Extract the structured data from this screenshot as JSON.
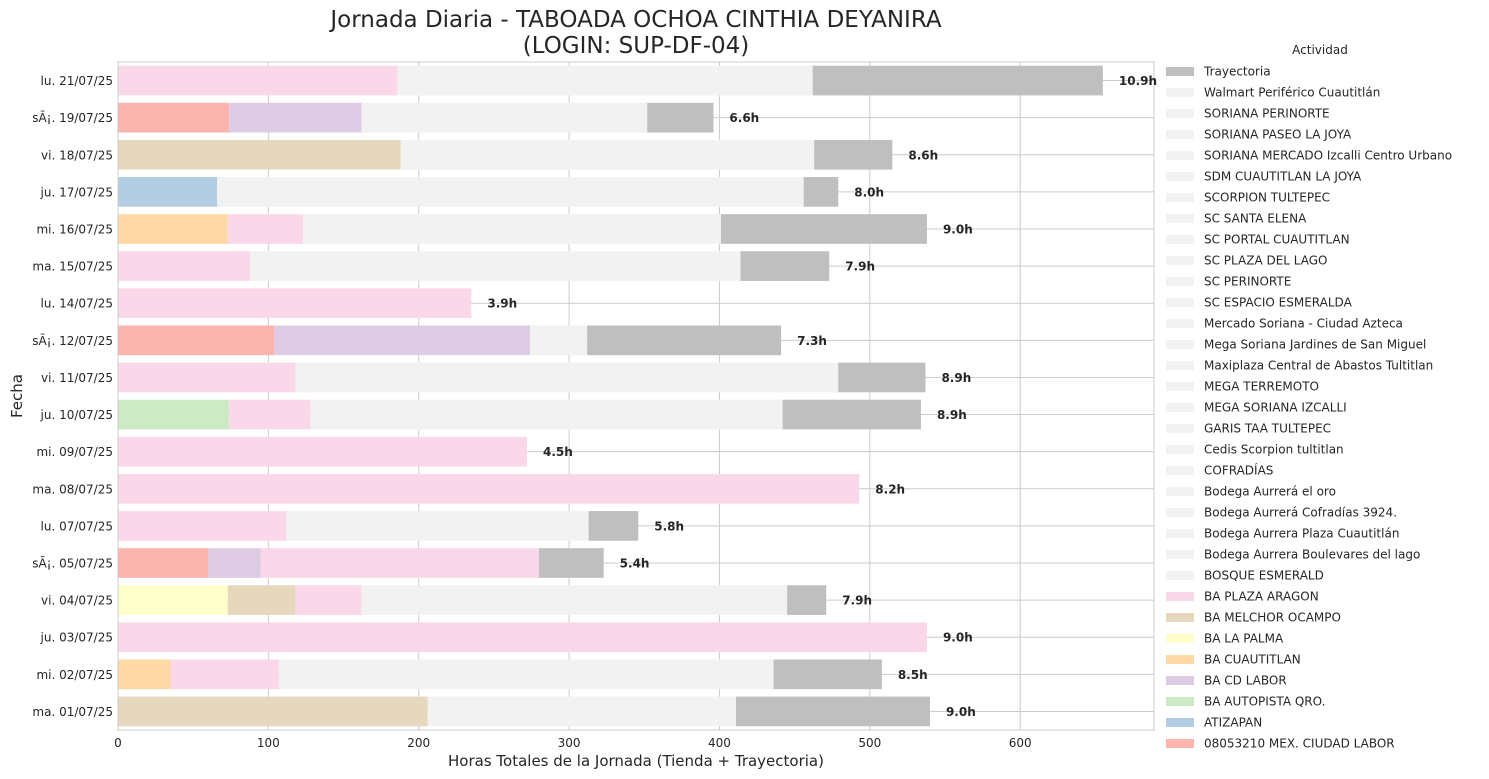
{
  "chart_data": {
    "type": "bar",
    "orientation": "horizontal",
    "stacked": true,
    "title_lines": [
      "Jornada Diaria - TABOADA OCHOA CINTHIA DEYANIRA",
      "(LOGIN: SUP-DF-04)"
    ],
    "xlabel": "Horas Totales de la Jornada (Tienda + Trayectoria)",
    "ylabel": "Fecha",
    "xlim": [
      0,
      689
    ],
    "xticks": [
      0,
      100,
      200,
      300,
      400,
      500,
      600
    ],
    "grid": true,
    "legend": {
      "title": "Actividad",
      "placement": "right"
    },
    "colors": {
      "Trayectoria": "#bfbfbf",
      "store": "#f2f2f2",
      "BA PLAZA ARAGON": "#fbd8e9",
      "BA MELCHOR OCAMPO": "#e5d8bd",
      "BA LA PALMA": "#ffffcc",
      "BA CUAUTITLAN": "#fed9a6",
      "BA CD LABOR": "#decbe4",
      "BA AUTOPISTA QRO.": "#ccebc5",
      "ATIZAPAN": "#b3cde3",
      "08053210 MEX. CIUDAD LABOR": "#fbb4ae"
    },
    "legend_entries": [
      "Trayectoria",
      "Walmart Periférico Cuautitlán",
      "SORIANA PERINORTE",
      "SORIANA PASEO LA JOYA",
      "SORIANA MERCADO Izcalli Centro Urbano",
      "SDM CUAUTITLAN LA JOYA",
      "SCORPION TULTEPEC",
      "SC SANTA ELENA",
      "SC PORTAL CUAUTITLAN",
      "SC PLAZA DEL LAGO",
      "SC PERINORTE",
      "SC ESPACIO ESMERALDA",
      "Mercado Soriana - Ciudad Azteca",
      "Mega Soriana Jardines de San Miguel",
      "Maxiplaza Central de Abastos Tultitlan",
      "MEGA TERREMOTO",
      "MEGA SORIANA IZCALLI",
      "GARIS TAA TULTEPEC",
      "Cedis Scorpion tultitlan",
      "COFRADÍAS",
      "Bodega Aurrerá el oro",
      "Bodega Aurrerá Cofradías 3924.",
      "Bodega Aurrera Plaza Cuautitlán",
      "Bodega Aurrera Boulevares del lago",
      "BOSQUE ESMERALD",
      "BA PLAZA ARAGON",
      "BA MELCHOR OCAMPO",
      "BA LA PALMA",
      "BA CUAUTITLAN",
      "BA CD LABOR",
      "BA AUTOPISTA QRO.",
      "ATIZAPAN",
      "08053210 MEX. CIUDAD LABOR"
    ],
    "rows": [
      {
        "date": "lu. 21/07/25",
        "total_label": "10.9h",
        "segments": [
          {
            "activity": "BA PLAZA ARAGON",
            "value": 186
          },
          {
            "activity": "Other stores",
            "value": 276
          },
          {
            "activity": "Trayectoria",
            "value": 193
          }
        ]
      },
      {
        "date": "sÃ¡. 19/07/25",
        "total_label": "6.6h",
        "segments": [
          {
            "activity": "08053210 MEX. CIUDAD LABOR",
            "value": 74
          },
          {
            "activity": "BA CD LABOR",
            "value": 88
          },
          {
            "activity": "Other stores",
            "value": 190
          },
          {
            "activity": "Trayectoria",
            "value": 44
          }
        ]
      },
      {
        "date": "vi. 18/07/25",
        "total_label": "8.6h",
        "segments": [
          {
            "activity": "BA MELCHOR OCAMPO",
            "value": 188
          },
          {
            "activity": "Other stores",
            "value": 275
          },
          {
            "activity": "Trayectoria",
            "value": 52
          }
        ]
      },
      {
        "date": "ju. 17/07/25",
        "total_label": "8.0h",
        "segments": [
          {
            "activity": "ATIZAPAN",
            "value": 66
          },
          {
            "activity": "Other stores",
            "value": 390
          },
          {
            "activity": "Trayectoria",
            "value": 23
          }
        ]
      },
      {
        "date": "mi. 16/07/25",
        "total_label": "9.0h",
        "segments": [
          {
            "activity": "BA CUAUTITLAN",
            "value": 73
          },
          {
            "activity": "BA PLAZA ARAGON",
            "value": 50
          },
          {
            "activity": "Other stores",
            "value": 278
          },
          {
            "activity": "Trayectoria",
            "value": 137
          }
        ]
      },
      {
        "date": "ma. 15/07/25",
        "total_label": "7.9h",
        "segments": [
          {
            "activity": "BA PLAZA ARAGON",
            "value": 88
          },
          {
            "activity": "Other stores",
            "value": 326
          },
          {
            "activity": "Trayectoria",
            "value": 59
          }
        ]
      },
      {
        "date": "lu. 14/07/25",
        "total_label": "3.9h",
        "segments": [
          {
            "activity": "BA PLAZA ARAGON",
            "value": 235
          }
        ]
      },
      {
        "date": "sÃ¡. 12/07/25",
        "total_label": "7.3h",
        "segments": [
          {
            "activity": "08053210 MEX. CIUDAD LABOR",
            "value": 104
          },
          {
            "activity": "BA CD LABOR",
            "value": 170
          },
          {
            "activity": "Other stores",
            "value": 38
          },
          {
            "activity": "Trayectoria",
            "value": 129
          }
        ]
      },
      {
        "date": "vi. 11/07/25",
        "total_label": "8.9h",
        "segments": [
          {
            "activity": "BA PLAZA ARAGON",
            "value": 118
          },
          {
            "activity": "Other stores",
            "value": 361
          },
          {
            "activity": "Trayectoria",
            "value": 58
          }
        ]
      },
      {
        "date": "ju. 10/07/25",
        "total_label": "8.9h",
        "segments": [
          {
            "activity": "BA AUTOPISTA QRO.",
            "value": 74
          },
          {
            "activity": "BA PLAZA ARAGON",
            "value": 54
          },
          {
            "activity": "Other stores",
            "value": 314
          },
          {
            "activity": "Trayectoria",
            "value": 92
          }
        ]
      },
      {
        "date": "mi. 09/07/25",
        "total_label": "4.5h",
        "segments": [
          {
            "activity": "BA PLAZA ARAGON",
            "value": 272
          }
        ]
      },
      {
        "date": "ma. 08/07/25",
        "total_label": "8.2h",
        "segments": [
          {
            "activity": "BA PLAZA ARAGON",
            "value": 493
          }
        ]
      },
      {
        "date": "lu. 07/07/25",
        "total_label": "5.8h",
        "segments": [
          {
            "activity": "BA PLAZA ARAGON",
            "value": 112
          },
          {
            "activity": "Other stores",
            "value": 201
          },
          {
            "activity": "Trayectoria",
            "value": 33
          }
        ]
      },
      {
        "date": "sÃ¡. 05/07/25",
        "total_label": "5.4h",
        "segments": [
          {
            "activity": "08053210 MEX. CIUDAD LABOR",
            "value": 60
          },
          {
            "activity": "BA CD LABOR",
            "value": 35
          },
          {
            "activity": "BA PLAZA ARAGON",
            "value": 185
          },
          {
            "activity": "Trayectoria",
            "value": 43
          }
        ]
      },
      {
        "date": "vi. 04/07/25",
        "total_label": "7.9h",
        "segments": [
          {
            "activity": "BA LA PALMA",
            "value": 73
          },
          {
            "activity": "BA MELCHOR OCAMPO",
            "value": 45
          },
          {
            "activity": "BA PLAZA ARAGON",
            "value": 44
          },
          {
            "activity": "Other stores",
            "value": 283
          },
          {
            "activity": "Trayectoria",
            "value": 26
          }
        ]
      },
      {
        "date": "ju. 03/07/25",
        "total_label": "9.0h",
        "segments": [
          {
            "activity": "BA PLAZA ARAGON",
            "value": 538
          }
        ]
      },
      {
        "date": "mi. 02/07/25",
        "total_label": "8.5h",
        "segments": [
          {
            "activity": "BA CUAUTITLAN",
            "value": 35
          },
          {
            "activity": "BA PLAZA ARAGON",
            "value": 72
          },
          {
            "activity": "Other stores",
            "value": 329
          },
          {
            "activity": "Trayectoria",
            "value": 72
          }
        ]
      },
      {
        "date": "ma. 01/07/25",
        "total_label": "9.0h",
        "segments": [
          {
            "activity": "BA MELCHOR OCAMPO",
            "value": 206
          },
          {
            "activity": "Other stores",
            "value": 205
          },
          {
            "activity": "Trayectoria",
            "value": 129
          }
        ]
      }
    ]
  }
}
